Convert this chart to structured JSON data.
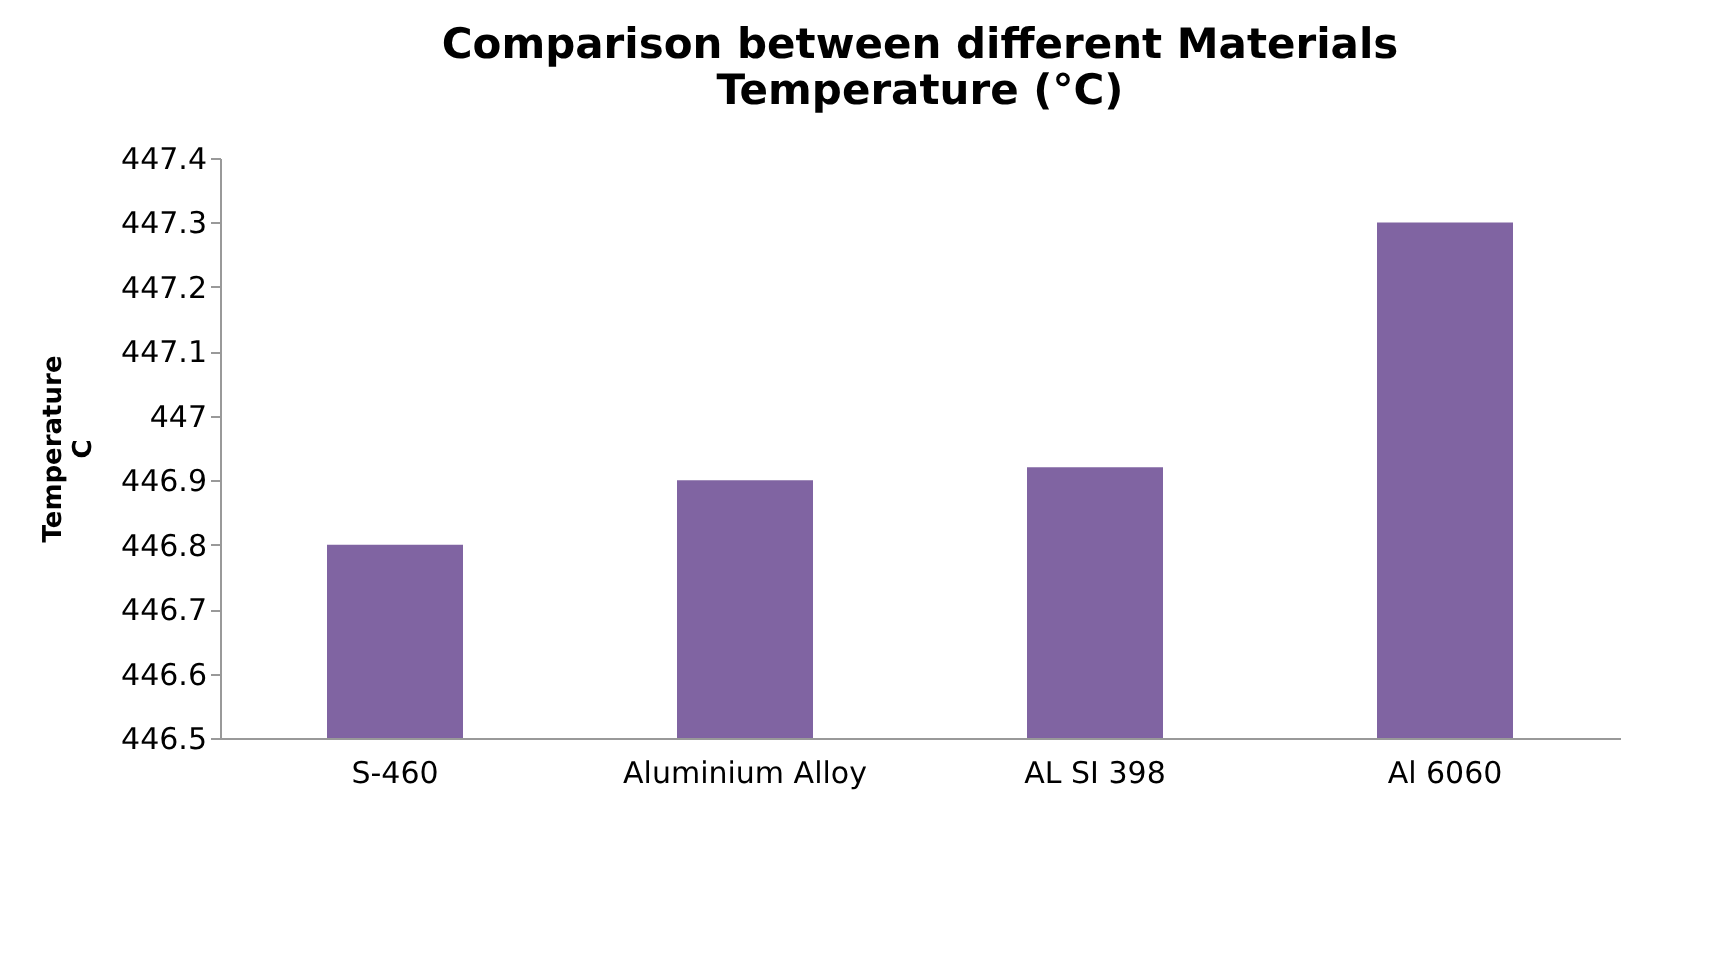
{
  "chart_data": {
    "type": "bar",
    "title": "Comparison  between different Materials\nTemperature (°C)",
    "ylabel": "Temperature\nC",
    "categories": [
      "S-460",
      "Aluminium Alloy",
      "AL SI 398",
      "Al 6060"
    ],
    "values": [
      446.8,
      446.9,
      446.92,
      447.3
    ],
    "color": "#8064a2",
    "ylim": [
      446.5,
      447.4
    ],
    "yticks": [
      446.5,
      446.6,
      446.7,
      446.8,
      446.9,
      447,
      447.1,
      447.2,
      447.3,
      447.4
    ]
  }
}
